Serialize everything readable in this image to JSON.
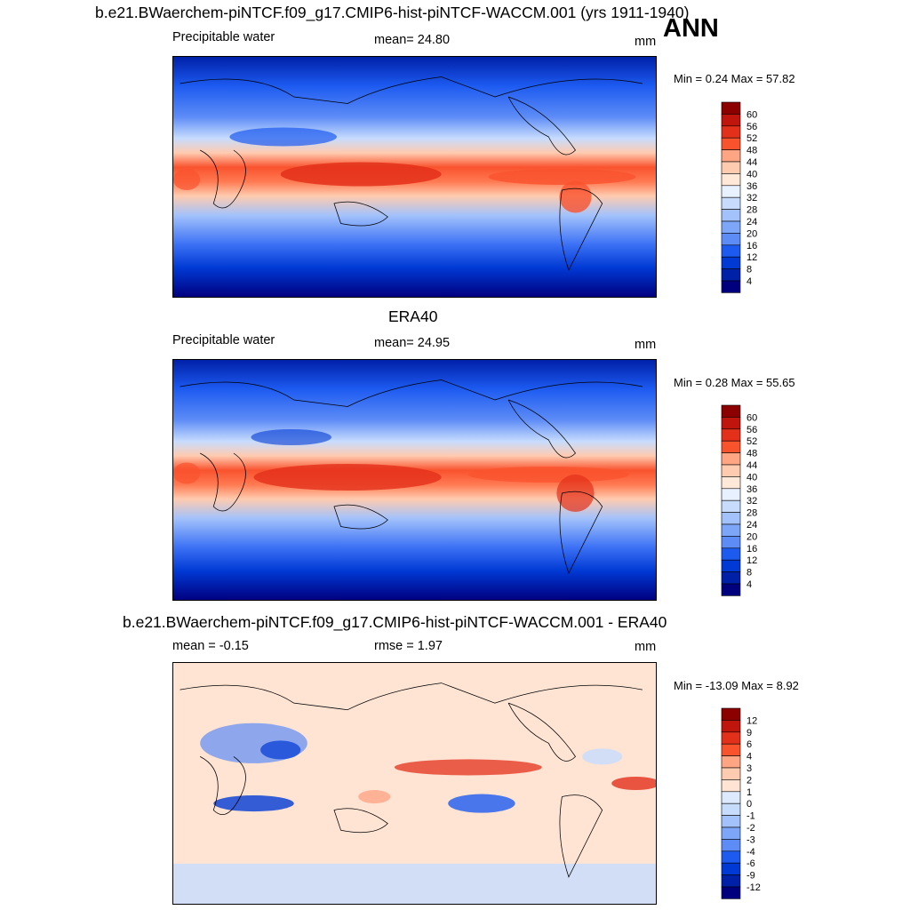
{
  "season": "ANN",
  "units": "mm",
  "field": "Precipitable water",
  "panels": [
    {
      "id": "model",
      "title": "b.e21.BWaerchem-piNTCF.f09_g17.CMIP6-hist-piNTCF-WACCM.001 (yrs 1911-1940)",
      "left_label": "Precipitable water",
      "mid_label": "mean=  24.80",
      "right_label": "mm",
      "minmax": "Min =   0.24 Max =  57.82",
      "colorbar_labels": [
        "60",
        "56",
        "52",
        "48",
        "44",
        "40",
        "36",
        "32",
        "28",
        "24",
        "20",
        "16",
        "12",
        "8",
        "4"
      ]
    },
    {
      "id": "obs",
      "title": "ERA40",
      "left_label": "Precipitable water",
      "mid_label": "mean=  24.95",
      "right_label": "mm",
      "minmax": "Min =   0.28 Max =  55.65",
      "colorbar_labels": [
        "60",
        "56",
        "52",
        "48",
        "44",
        "40",
        "36",
        "32",
        "28",
        "24",
        "20",
        "16",
        "12",
        "8",
        "4"
      ]
    },
    {
      "id": "diff",
      "title": "b.e21.BWaerchem-piNTCF.f09_g17.CMIP6-hist-piNTCF-WACCM.001 - ERA40",
      "left_label": "mean =  -0.15",
      "mid_label": "rmse =   1.97",
      "right_label": "mm",
      "minmax": "Min = -13.09 Max =   8.92",
      "colorbar_labels": [
        "12",
        "9",
        "6",
        "4",
        "3",
        "2",
        "1",
        "0",
        "-1",
        "-2",
        "-3",
        "-4",
        "-6",
        "-9",
        "-12"
      ]
    }
  ],
  "colors": {
    "pw_scale": [
      "#00007f",
      "#0020a8",
      "#0039d4",
      "#1c5af0",
      "#3d72f5",
      "#5d8cf7",
      "#7da6f9",
      "#a3c2fb",
      "#c7dcfd",
      "#e8f1ff",
      "#ffe8d8",
      "#ffcbb0",
      "#ffa584",
      "#ff7a52",
      "#f9532e",
      "#e3301a",
      "#c0150c",
      "#8c0000"
    ],
    "diff_scale": [
      "#00007f",
      "#0020a8",
      "#0039d4",
      "#1c5af0",
      "#3d72f5",
      "#5d8cf7",
      "#7da6f9",
      "#a3c2fb",
      "#c7dcfd",
      "#dde9fc",
      "#ffe4d4",
      "#ffcbb0",
      "#ffa584",
      "#ff7a52",
      "#f9532e",
      "#e3301a",
      "#c0150c",
      "#8c0000"
    ]
  }
}
